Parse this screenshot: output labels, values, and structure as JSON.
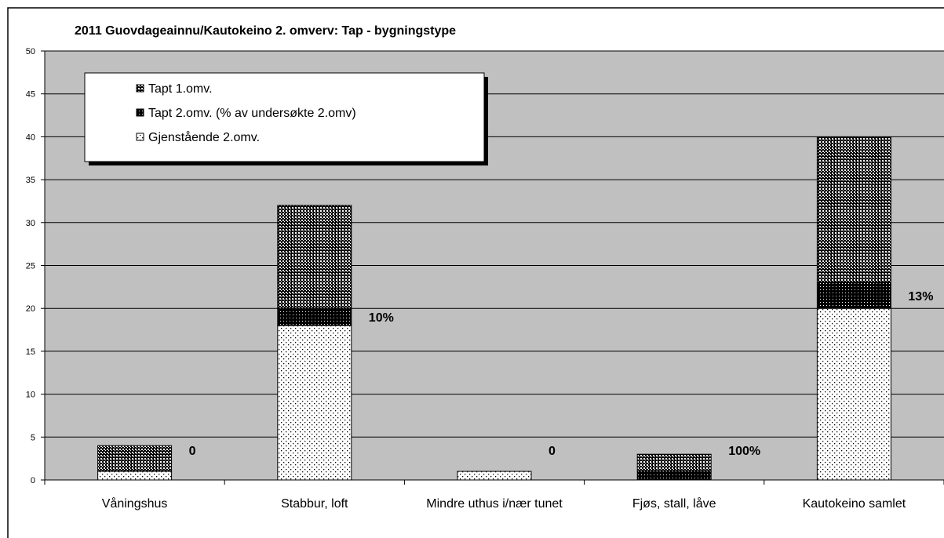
{
  "chart_data": {
    "type": "stacked_bar",
    "title": "2011 Guovdageainnu/Kautokeino 2. omverv: Tap - bygningstype",
    "categories": [
      "Våningshus",
      "Stabbur, loft",
      "Mindre uthus i/nær tunet",
      "Fjøs, stall, låve",
      "Kautokeino samlet"
    ],
    "series": [
      {
        "name": "Gjenstående 2.omv.",
        "color": "#ffffff",
        "values": [
          1,
          18,
          1,
          0,
          20
        ]
      },
      {
        "name": "Tapt 2.omv. (% av undersøkte 2.omv)",
        "color": "#000000",
        "values": [
          0,
          2,
          0,
          1,
          3
        ]
      },
      {
        "name": "Tapt 1.omv.",
        "color": "#808080",
        "values": [
          3,
          12,
          0,
          2,
          17
        ]
      }
    ],
    "annotations": [
      "0",
      "10%",
      "0",
      "100%",
      "13%"
    ],
    "ylim": [
      0,
      50
    ],
    "yticks": [
      0,
      5,
      10,
      15,
      20,
      25,
      30,
      35,
      40,
      45,
      50
    ],
    "grid": true,
    "legend": "top-left"
  }
}
